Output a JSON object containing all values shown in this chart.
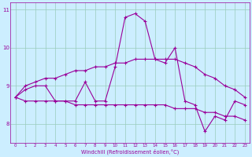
{
  "xlabel": "Windchill (Refroidissement éolien,°C)",
  "x": [
    0,
    1,
    2,
    3,
    4,
    5,
    6,
    7,
    8,
    9,
    10,
    11,
    12,
    13,
    14,
    15,
    16,
    17,
    18,
    19,
    20,
    21,
    22,
    23
  ],
  "y_main": [
    8.7,
    8.9,
    9.0,
    9.0,
    8.6,
    8.6,
    8.6,
    9.1,
    8.6,
    8.6,
    9.5,
    10.8,
    10.9,
    10.7,
    9.7,
    9.6,
    10.0,
    8.6,
    8.5,
    7.8,
    8.2,
    8.1,
    8.6,
    8.5
  ],
  "y_upper": [
    8.7,
    9.0,
    9.1,
    9.2,
    9.2,
    9.3,
    9.4,
    9.4,
    9.5,
    9.5,
    9.6,
    9.6,
    9.7,
    9.7,
    9.7,
    9.7,
    9.7,
    9.6,
    9.5,
    9.3,
    9.2,
    9.0,
    8.9,
    8.7
  ],
  "y_lower": [
    8.7,
    8.6,
    8.6,
    8.6,
    8.6,
    8.6,
    8.5,
    8.5,
    8.5,
    8.5,
    8.5,
    8.5,
    8.5,
    8.5,
    8.5,
    8.5,
    8.4,
    8.4,
    8.4,
    8.3,
    8.3,
    8.2,
    8.2,
    8.1
  ],
  "line_color": "#990099",
  "bg_color": "#cceeff",
  "grid_color": "#99ccbb",
  "ylim": [
    7.5,
    11.2
  ],
  "yticks": [
    8,
    9,
    10,
    11
  ],
  "fig_w": 3.2,
  "fig_h": 2.0,
  "dpi": 100
}
